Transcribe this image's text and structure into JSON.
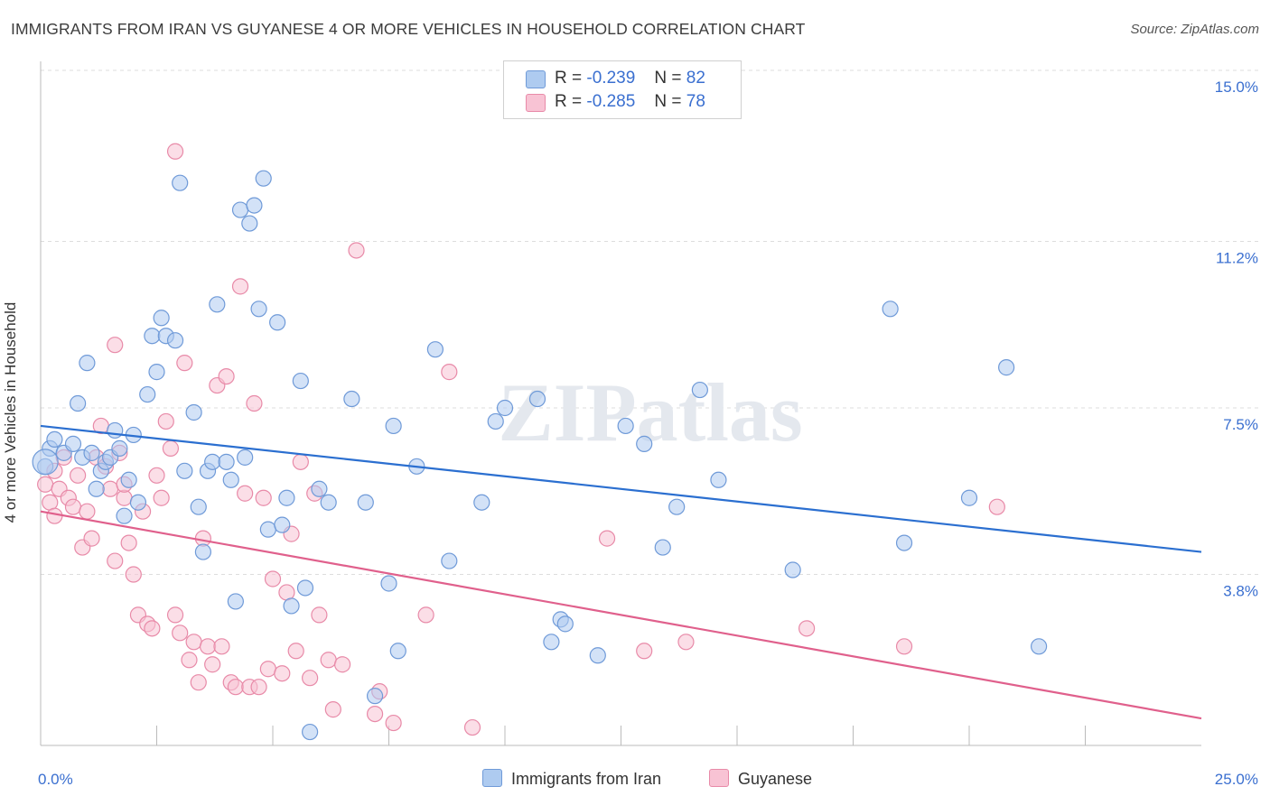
{
  "title": "IMMIGRANTS FROM IRAN VS GUYANESE 4 OR MORE VEHICLES IN HOUSEHOLD CORRELATION CHART",
  "source": "Source: ZipAtlas.com",
  "watermark": "ZIPatlas",
  "legend": {
    "rows": [
      {
        "r_label": "R =",
        "r_value": "-0.239",
        "n_label": "N =",
        "n_value": "82"
      },
      {
        "r_label": "R =",
        "r_value": "-0.285",
        "n_label": "N =",
        "n_value": "78"
      }
    ]
  },
  "bottom_legend": [
    "Immigrants from Iran",
    "Guyanese"
  ],
  "colors": {
    "iran_fill": "#aecbf0",
    "iran_stroke": "#6f9ad8",
    "iran_line": "#2b6fd0",
    "guy_fill": "#f8c3d4",
    "guy_stroke": "#e88aa8",
    "guy_line": "#e0608c",
    "tick_label": "#3a6fd0",
    "grid": "#dddddd"
  },
  "chart_data": {
    "type": "scatter",
    "title": "IMMIGRANTS FROM IRAN VS GUYANESE 4 OR MORE VEHICLES IN HOUSEHOLD CORRELATION CHART",
    "xlabel": "",
    "ylabel": "4 or more Vehicles in Household",
    "xlim": [
      0,
      25
    ],
    "ylim": [
      0,
      15
    ],
    "x_tick_labels": [
      {
        "value": 0,
        "label": "0.0%"
      },
      {
        "value": 25,
        "label": "25.0%"
      }
    ],
    "x_minor_ticks": [
      2.5,
      5,
      7.5,
      10,
      12.5,
      15,
      17.5,
      20,
      22.5
    ],
    "y_ticks": [
      {
        "value": 3.8,
        "label": "3.8%"
      },
      {
        "value": 7.5,
        "label": "7.5%"
      },
      {
        "value": 11.2,
        "label": "11.2%"
      },
      {
        "value": 15.0,
        "label": "15.0%"
      }
    ],
    "grid": true,
    "legend_position": "top-center",
    "series": [
      {
        "name": "Immigrants from Iran",
        "r": -0.239,
        "n": 82,
        "trend": {
          "x": [
            0,
            25
          ],
          "y": [
            7.1,
            4.3
          ]
        },
        "points": [
          [
            0.1,
            6.2
          ],
          [
            0.2,
            6.6
          ],
          [
            0.3,
            6.8
          ],
          [
            0.5,
            6.5
          ],
          [
            0.7,
            6.7
          ],
          [
            0.8,
            7.6
          ],
          [
            0.9,
            6.4
          ],
          [
            1.0,
            8.5
          ],
          [
            1.1,
            6.5
          ],
          [
            1.2,
            5.7
          ],
          [
            1.3,
            6.1
          ],
          [
            1.4,
            6.3
          ],
          [
            1.5,
            6.4
          ],
          [
            1.6,
            7.0
          ],
          [
            1.7,
            6.6
          ],
          [
            1.8,
            5.1
          ],
          [
            1.9,
            5.9
          ],
          [
            2.0,
            6.9
          ],
          [
            2.1,
            5.4
          ],
          [
            2.3,
            7.8
          ],
          [
            2.4,
            9.1
          ],
          [
            2.5,
            8.3
          ],
          [
            2.6,
            9.5
          ],
          [
            2.7,
            9.1
          ],
          [
            2.9,
            9.0
          ],
          [
            3.0,
            12.5
          ],
          [
            3.1,
            6.1
          ],
          [
            3.3,
            7.4
          ],
          [
            3.4,
            5.3
          ],
          [
            3.5,
            4.3
          ],
          [
            3.6,
            6.1
          ],
          [
            3.7,
            6.3
          ],
          [
            3.8,
            9.8
          ],
          [
            4.0,
            6.3
          ],
          [
            4.1,
            5.9
          ],
          [
            4.2,
            3.2
          ],
          [
            4.3,
            11.9
          ],
          [
            4.4,
            6.4
          ],
          [
            4.5,
            11.6
          ],
          [
            4.6,
            12.0
          ],
          [
            4.7,
            9.7
          ],
          [
            4.8,
            12.6
          ],
          [
            4.9,
            4.8
          ],
          [
            5.1,
            9.4
          ],
          [
            5.2,
            4.9
          ],
          [
            5.3,
            5.5
          ],
          [
            5.4,
            3.1
          ],
          [
            5.6,
            8.1
          ],
          [
            5.7,
            3.5
          ],
          [
            6.0,
            5.7
          ],
          [
            6.2,
            5.4
          ],
          [
            6.7,
            7.7
          ],
          [
            7.0,
            5.4
          ],
          [
            7.2,
            1.1
          ],
          [
            7.5,
            3.6
          ],
          [
            7.6,
            7.1
          ],
          [
            7.7,
            2.1
          ],
          [
            8.1,
            6.2
          ],
          [
            8.5,
            8.8
          ],
          [
            8.8,
            4.1
          ],
          [
            9.5,
            5.4
          ],
          [
            9.8,
            7.2
          ],
          [
            10.0,
            7.5
          ],
          [
            10.7,
            7.7
          ],
          [
            11.0,
            2.3
          ],
          [
            11.2,
            2.8
          ],
          [
            11.3,
            2.7
          ],
          [
            12.0,
            2.0
          ],
          [
            12.6,
            7.1
          ],
          [
            13.0,
            6.7
          ],
          [
            13.4,
            4.4
          ],
          [
            13.7,
            5.3
          ],
          [
            14.2,
            7.9
          ],
          [
            14.6,
            5.9
          ],
          [
            16.2,
            3.9
          ],
          [
            18.3,
            9.7
          ],
          [
            18.6,
            4.5
          ],
          [
            20.0,
            5.5
          ],
          [
            20.8,
            8.4
          ],
          [
            21.5,
            2.2
          ],
          [
            5.8,
            0.3
          ],
          [
            0.1,
            6.3
          ]
        ]
      },
      {
        "name": "Guyanese",
        "r": -0.285,
        "n": 78,
        "trend": {
          "x": [
            0,
            25
          ],
          "y": [
            5.2,
            0.6
          ]
        },
        "points": [
          [
            0.1,
            5.8
          ],
          [
            0.2,
            5.4
          ],
          [
            0.3,
            5.1
          ],
          [
            0.4,
            5.7
          ],
          [
            0.5,
            6.4
          ],
          [
            0.6,
            5.5
          ],
          [
            0.7,
            5.3
          ],
          [
            0.8,
            6.0
          ],
          [
            0.9,
            4.4
          ],
          [
            1.0,
            5.2
          ],
          [
            1.1,
            4.6
          ],
          [
            1.2,
            6.4
          ],
          [
            1.3,
            7.1
          ],
          [
            1.4,
            6.2
          ],
          [
            1.5,
            5.7
          ],
          [
            1.6,
            4.1
          ],
          [
            1.7,
            6.5
          ],
          [
            1.8,
            5.5
          ],
          [
            1.9,
            4.5
          ],
          [
            2.0,
            3.8
          ],
          [
            2.1,
            2.9
          ],
          [
            2.2,
            5.2
          ],
          [
            2.3,
            2.7
          ],
          [
            2.4,
            2.6
          ],
          [
            2.5,
            6.0
          ],
          [
            2.6,
            5.5
          ],
          [
            2.7,
            7.2
          ],
          [
            2.8,
            6.6
          ],
          [
            2.9,
            2.9
          ],
          [
            3.0,
            2.5
          ],
          [
            3.1,
            8.5
          ],
          [
            3.2,
            1.9
          ],
          [
            3.3,
            2.3
          ],
          [
            3.4,
            1.4
          ],
          [
            3.5,
            4.6
          ],
          [
            3.6,
            2.2
          ],
          [
            3.7,
            1.8
          ],
          [
            3.8,
            8.0
          ],
          [
            3.9,
            2.2
          ],
          [
            4.0,
            8.2
          ],
          [
            4.1,
            1.4
          ],
          [
            4.2,
            1.3
          ],
          [
            4.3,
            10.2
          ],
          [
            4.4,
            5.6
          ],
          [
            4.5,
            1.3
          ],
          [
            4.6,
            7.6
          ],
          [
            4.7,
            1.3
          ],
          [
            4.8,
            5.5
          ],
          [
            4.9,
            1.7
          ],
          [
            5.0,
            3.7
          ],
          [
            5.2,
            1.6
          ],
          [
            5.3,
            3.4
          ],
          [
            5.4,
            4.7
          ],
          [
            5.5,
            2.1
          ],
          [
            5.6,
            6.3
          ],
          [
            5.8,
            1.5
          ],
          [
            5.9,
            5.6
          ],
          [
            6.0,
            2.9
          ],
          [
            6.2,
            1.9
          ],
          [
            6.3,
            0.8
          ],
          [
            6.5,
            1.8
          ],
          [
            6.8,
            11.0
          ],
          [
            7.2,
            0.7
          ],
          [
            7.3,
            1.2
          ],
          [
            8.3,
            2.9
          ],
          [
            8.8,
            8.3
          ],
          [
            9.3,
            0.4
          ],
          [
            12.2,
            4.6
          ],
          [
            13.0,
            2.1
          ],
          [
            13.9,
            2.3
          ],
          [
            16.5,
            2.6
          ],
          [
            18.6,
            2.2
          ],
          [
            20.6,
            5.3
          ],
          [
            2.9,
            13.2
          ],
          [
            1.6,
            8.9
          ],
          [
            1.8,
            5.8
          ],
          [
            0.3,
            6.1
          ],
          [
            7.6,
            0.5
          ]
        ]
      }
    ]
  }
}
